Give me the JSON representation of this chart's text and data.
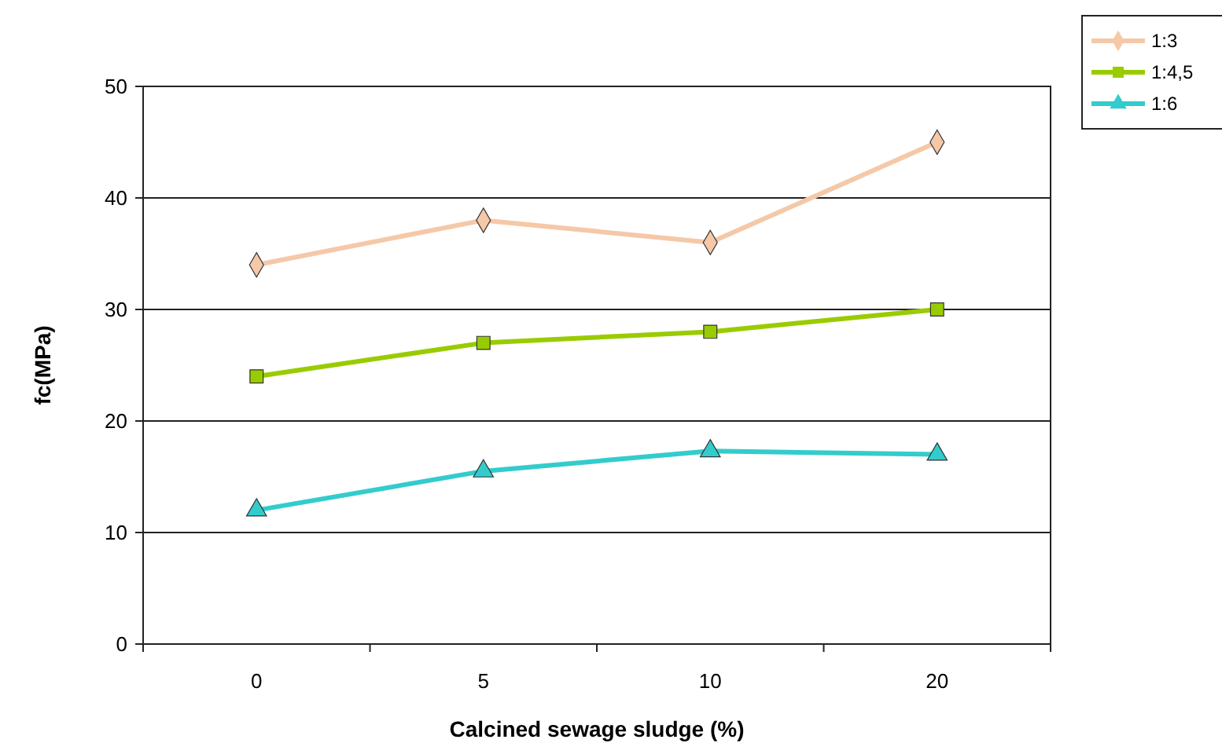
{
  "chart_data": {
    "type": "line",
    "xlabel": "Calcined sewage sludge (%)",
    "ylabel": "fc(MPa)",
    "categories": [
      "0",
      "5",
      "10",
      "20"
    ],
    "ylim": [
      0,
      50
    ],
    "yticks": [
      0,
      10,
      20,
      30,
      40,
      50
    ],
    "grid": "y",
    "legend": "top right",
    "series": [
      {
        "name": "1:3",
        "color": "#f5c8a8",
        "marker": "diamond",
        "values": [
          34,
          38,
          36,
          45
        ]
      },
      {
        "name": "1:4,5",
        "color": "#99cc00",
        "marker": "square",
        "values": [
          24,
          27,
          28,
          30
        ]
      },
      {
        "name": "1:6",
        "color": "#33cccc",
        "marker": "triangle",
        "values": [
          12,
          15.5,
          17.3,
          17
        ]
      }
    ]
  }
}
